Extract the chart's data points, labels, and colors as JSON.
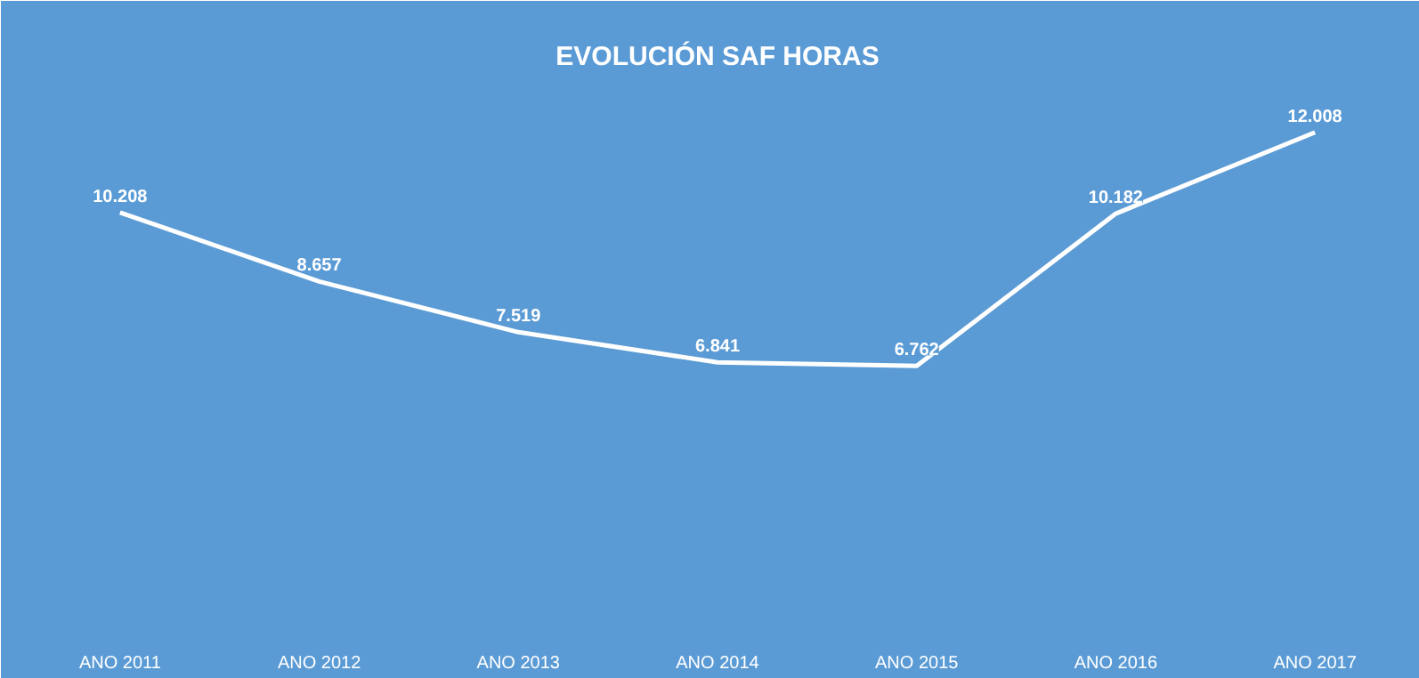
{
  "chart_data": {
    "type": "line",
    "title": "EVOLUCIÓN SAF HORAS",
    "categories": [
      "ANO 2011",
      "ANO 2012",
      "ANO 2013",
      "ANO 2014",
      "ANO 2015",
      "ANO 2016",
      "ANO 2017"
    ],
    "series": [
      {
        "color": "#ffffff",
        "values": [
          10208,
          8657,
          7519,
          6841,
          6762,
          10182,
          12008
        ],
        "value_labels": [
          "10.208",
          "8.657",
          "7.519",
          "6.841",
          "6.762",
          "10.182",
          "12.008"
        ]
      }
    ],
    "grid": false,
    "marker": "none",
    "line_style": "solid",
    "tick_labels": "x"
  }
}
